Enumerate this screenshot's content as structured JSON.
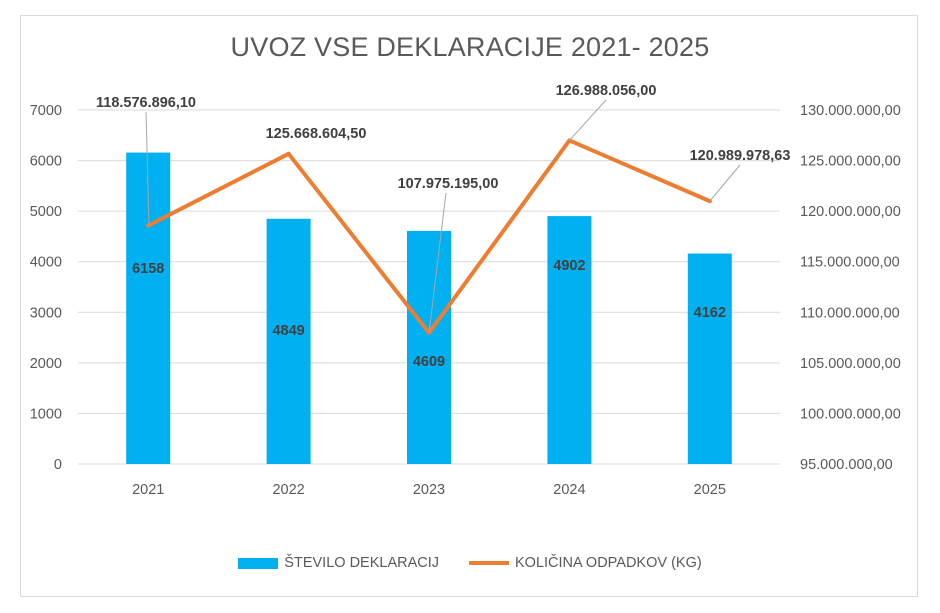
{
  "colors": {
    "bar": "#00b0f0",
    "line": "#ed7d31",
    "grid": "#d9d9d9",
    "text": "#595959"
  },
  "chart_data": {
    "type": "bar",
    "title": "UVOZ VSE DEKLARACIJE 2021- 2025",
    "categories": [
      "2021",
      "2022",
      "2023",
      "2024",
      "2025"
    ],
    "series": [
      {
        "name": "ŠTEVILO DEKLARACIJ",
        "type": "bar",
        "axis": "left",
        "values": [
          6158,
          4849,
          4609,
          4902,
          4162
        ]
      },
      {
        "name": "KOLIČINA ODPADKOV (KG)",
        "type": "line",
        "axis": "right",
        "values": [
          118576896.1,
          125668604.5,
          107975195.0,
          126988056.0,
          120989978.63
        ],
        "labels": [
          "118.576.896,10",
          "125.668.604,50",
          "107.975.195,00",
          "126.988.056,00",
          "120.989.978,63"
        ]
      }
    ],
    "bar_labels": [
      "6158",
      "4849",
      "4609",
      "4902",
      "4162"
    ],
    "y_left": {
      "min": 0,
      "max": 7000,
      "ticks": [
        "0",
        "1000",
        "2000",
        "3000",
        "4000",
        "5000",
        "6000",
        "7000"
      ]
    },
    "y_right": {
      "min": 95000000,
      "max": 130000000,
      "ticks": [
        "95.000.000,00",
        "100.000.000,00",
        "105.000.000,00",
        "110.000.000,00",
        "115.000.000,00",
        "120.000.000,00",
        "125.000.000,00",
        "130.000.000,00"
      ]
    },
    "grid": true,
    "legend": "bottom"
  }
}
